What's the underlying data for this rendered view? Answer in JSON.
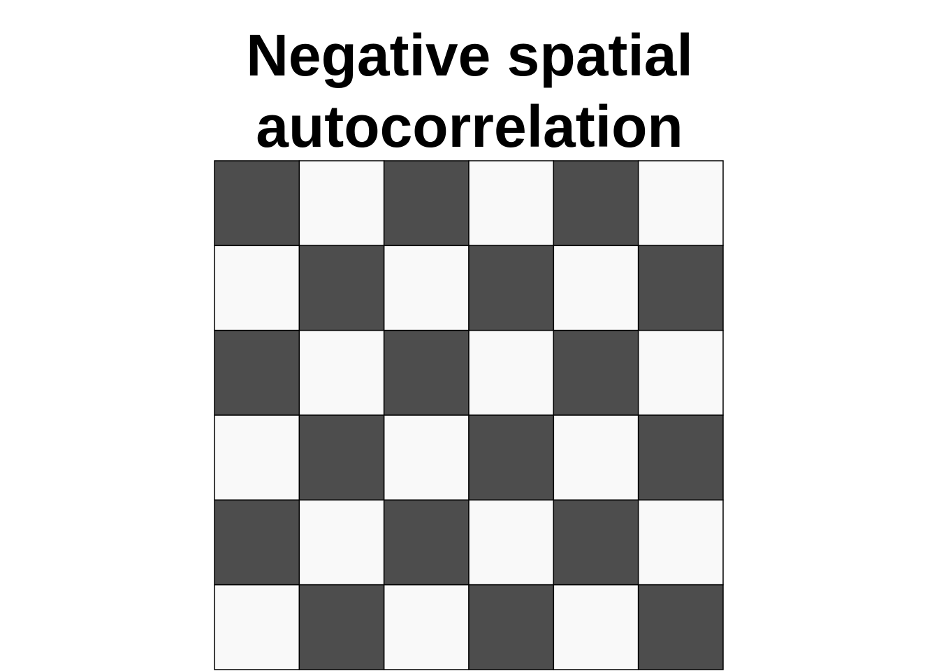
{
  "title": {
    "line1": "Negative spatial",
    "line2": "autocorrelation"
  },
  "grid": {
    "rows": 6,
    "cols": 6,
    "colors": {
      "dark": "#4d4d4d",
      "light": "#f9f9f9",
      "border": "#000000"
    },
    "cells": [
      [
        1,
        0,
        1,
        0,
        1,
        0
      ],
      [
        0,
        1,
        0,
        1,
        0,
        1
      ],
      [
        1,
        0,
        1,
        0,
        1,
        0
      ],
      [
        0,
        1,
        0,
        1,
        0,
        1
      ],
      [
        1,
        0,
        1,
        0,
        1,
        0
      ],
      [
        0,
        1,
        0,
        1,
        0,
        1
      ]
    ]
  }
}
